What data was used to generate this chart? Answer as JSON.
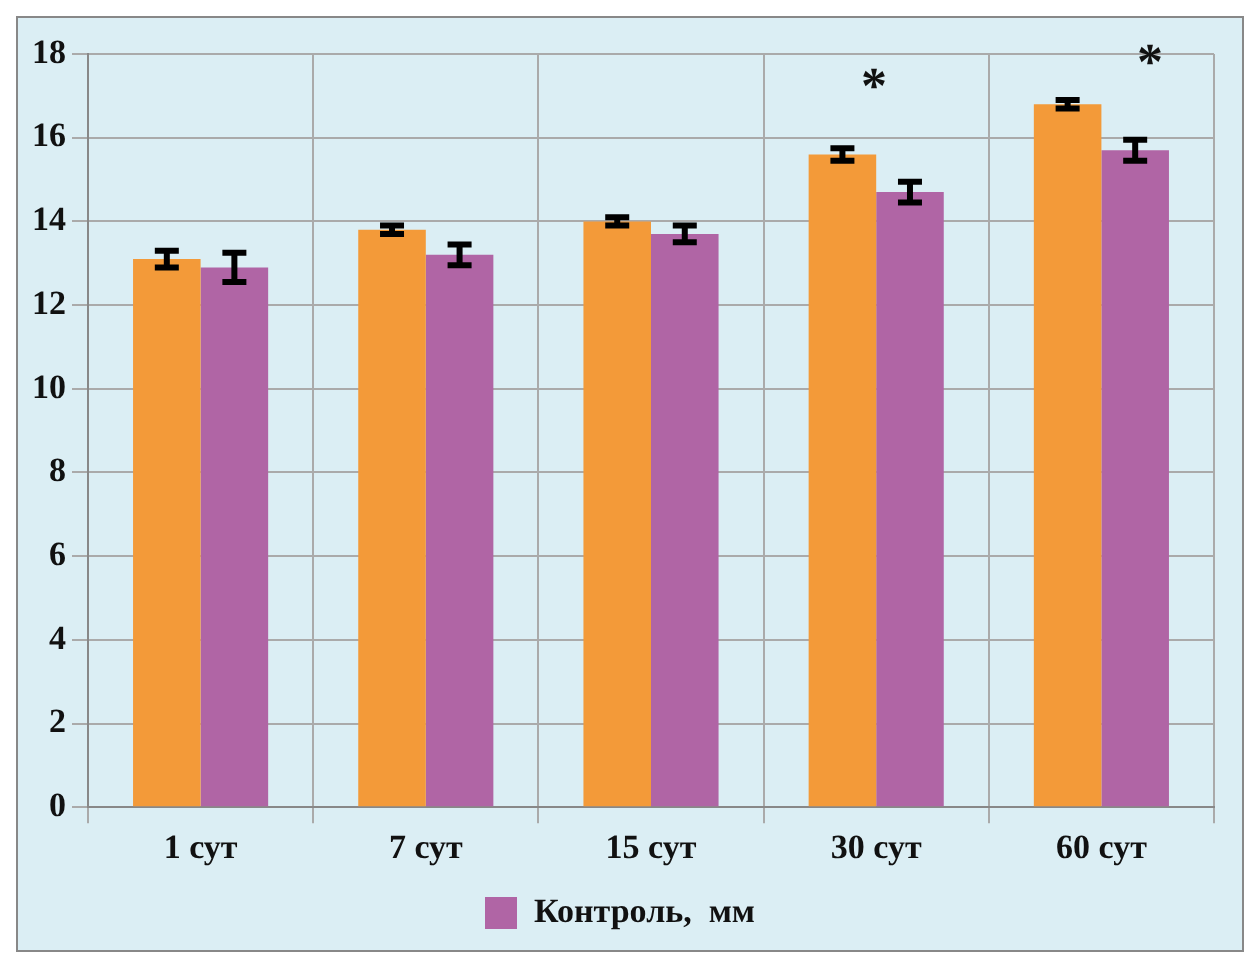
{
  "chart_data": {
    "type": "bar",
    "categories": [
      "1 сут",
      "7 сут",
      "15 сут",
      "30 сут",
      "60 сут"
    ],
    "series": [
      {
        "color": "#f39a39",
        "values": [
          13.1,
          13.8,
          14.0,
          15.6,
          16.8
        ],
        "errors": [
          0.2,
          0.1,
          0.1,
          0.15,
          0.1
        ]
      },
      {
        "name": "Контроль,  мм",
        "color": "#b065a5",
        "values": [
          12.9,
          13.2,
          13.7,
          14.7,
          15.7
        ],
        "errors": [
          0.35,
          0.25,
          0.2,
          0.25,
          0.25
        ]
      }
    ],
    "ylim": [
      0,
      18
    ],
    "yticks": [
      0,
      2,
      4,
      6,
      8,
      10,
      12,
      14,
      16,
      18
    ],
    "grid": true,
    "legend": "bottom",
    "annotations": [
      "*",
      "*"
    ]
  }
}
